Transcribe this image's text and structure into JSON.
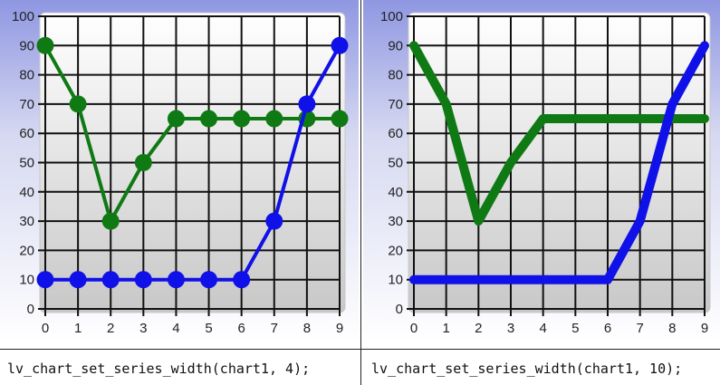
{
  "chart_data": [
    {
      "type": "line",
      "x": [
        0,
        1,
        2,
        3,
        4,
        5,
        6,
        7,
        8,
        9
      ],
      "ylim": [
        0,
        100
      ],
      "xlim": [
        0,
        9
      ],
      "y_ticks": [
        "0",
        "10",
        "20",
        "30",
        "40",
        "50",
        "60",
        "70",
        "80",
        "90",
        "100"
      ],
      "x_ticks": [
        "0",
        "1",
        "2",
        "3",
        "4",
        "5",
        "6",
        "7",
        "8",
        "9"
      ],
      "series_width": 4,
      "grid": true,
      "series": [
        {
          "color": "#0f7a14",
          "values": [
            90,
            70,
            30,
            50,
            65,
            65,
            65,
            65,
            65,
            65
          ]
        },
        {
          "color": "#1010e8",
          "values": [
            10,
            10,
            10,
            10,
            10,
            10,
            10,
            30,
            70,
            90
          ]
        }
      ]
    },
    {
      "type": "line",
      "x": [
        0,
        1,
        2,
        3,
        4,
        5,
        6,
        7,
        8,
        9
      ],
      "ylim": [
        0,
        100
      ],
      "xlim": [
        0,
        9
      ],
      "y_ticks": [
        "0",
        "10",
        "20",
        "30",
        "40",
        "50",
        "60",
        "70",
        "80",
        "90",
        "100"
      ],
      "x_ticks": [
        "0",
        "1",
        "2",
        "3",
        "4",
        "5",
        "6",
        "7",
        "8",
        "9"
      ],
      "series_width": 10,
      "grid": true,
      "series": [
        {
          "color": "#0f7a14",
          "values": [
            90,
            70,
            30,
            50,
            65,
            65,
            65,
            65,
            65,
            65
          ]
        },
        {
          "color": "#1010e8",
          "values": [
            10,
            10,
            10,
            10,
            10,
            10,
            10,
            30,
            70,
            90
          ]
        }
      ]
    }
  ],
  "captions": {
    "left": "lv_chart_set_series_width(chart1, 4);",
    "right": "lv_chart_set_series_width(chart1, 10);"
  }
}
